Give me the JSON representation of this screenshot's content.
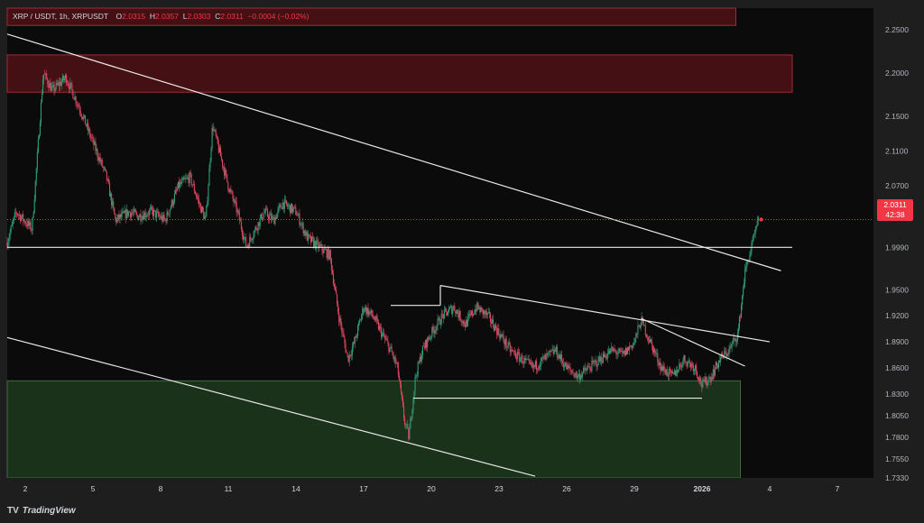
{
  "legend": {
    "symbol": "XRP / USDT, 1h, XRPUSDT",
    "o_label": "O",
    "o_value": "2.0315",
    "h_label": "H",
    "h_value": "2.0357",
    "l_label": "L",
    "l_value": "2.0303",
    "c_label": "C",
    "c_value": "2.0311",
    "change": "−0.0004 (−0.02%)"
  },
  "price_tag": {
    "price": "2.0311",
    "countdown": "42:38"
  },
  "brand": {
    "logo": "TV",
    "name": "TradingView"
  },
  "colors": {
    "background": "#0b0b0b",
    "bull": "#2f9e7a",
    "bear": "#e04660",
    "accent": "#f23645",
    "supply_zone": "#5a1318",
    "demand_zone": "#1d3a1d",
    "lines": "#e8e8e8"
  },
  "chart_data": {
    "type": "candlestick",
    "title": "XRP / USDT, 1h, XRPUSDT",
    "ylim": [
      1.733,
      2.275
    ],
    "xlim_days": [
      1.2,
      39.6
    ],
    "y_ticks": [
      "2.2500",
      "2.2000",
      "2.1500",
      "2.1100",
      "2.0700",
      "1.9990",
      "1.9500",
      "1.9200",
      "1.8900",
      "1.8600",
      "1.8300",
      "1.8050",
      "1.7800",
      "1.7550",
      "1.7330"
    ],
    "y_tick_values": [
      2.25,
      2.2,
      2.15,
      2.11,
      2.07,
      1.999,
      1.95,
      1.92,
      1.89,
      1.86,
      1.83,
      1.805,
      1.78,
      1.755,
      1.733
    ],
    "x_ticks": [
      {
        "day": 2,
        "label": "2"
      },
      {
        "day": 5,
        "label": "5"
      },
      {
        "day": 8,
        "label": "8"
      },
      {
        "day": 11,
        "label": "11"
      },
      {
        "day": 14,
        "label": "14"
      },
      {
        "day": 17,
        "label": "17"
      },
      {
        "day": 20,
        "label": "20"
      },
      {
        "day": 23,
        "label": "23"
      },
      {
        "day": 26,
        "label": "26"
      },
      {
        "day": 29,
        "label": "29"
      },
      {
        "day": 32,
        "label": "2026"
      },
      {
        "day": 35,
        "label": "4"
      },
      {
        "day": 38,
        "label": "7"
      }
    ],
    "last_price": 2.0311,
    "price_path": [
      [
        1.2,
        2.005
      ],
      [
        1.6,
        2.04
      ],
      [
        2.3,
        2.02
      ],
      [
        2.8,
        2.2
      ],
      [
        3.2,
        2.18
      ],
      [
        3.8,
        2.195
      ],
      [
        4.4,
        2.16
      ],
      [
        5.0,
        2.12
      ],
      [
        5.6,
        2.08
      ],
      [
        6.0,
        2.03
      ],
      [
        6.6,
        2.04
      ],
      [
        7.0,
        2.035
      ],
      [
        7.6,
        2.04
      ],
      [
        8.2,
        2.03
      ],
      [
        8.8,
        2.07
      ],
      [
        9.3,
        2.08
      ],
      [
        9.7,
        2.05
      ],
      [
        10.0,
        2.03
      ],
      [
        10.3,
        2.14
      ],
      [
        10.7,
        2.1
      ],
      [
        11.0,
        2.07
      ],
      [
        11.4,
        2.04
      ],
      [
        11.8,
        2.0
      ],
      [
        12.2,
        2.02
      ],
      [
        12.6,
        2.04
      ],
      [
        13.0,
        2.03
      ],
      [
        13.4,
        2.05
      ],
      [
        14.0,
        2.04
      ],
      [
        14.5,
        2.01
      ],
      [
        15.0,
        2.0
      ],
      [
        15.5,
        1.99
      ],
      [
        15.9,
        1.92
      ],
      [
        16.3,
        1.87
      ],
      [
        16.6,
        1.89
      ],
      [
        17.0,
        1.93
      ],
      [
        17.4,
        1.92
      ],
      [
        17.8,
        1.9
      ],
      [
        18.2,
        1.88
      ],
      [
        18.5,
        1.86
      ],
      [
        18.8,
        1.8
      ],
      [
        19.0,
        1.78
      ],
      [
        19.3,
        1.85
      ],
      [
        19.6,
        1.88
      ],
      [
        20.0,
        1.9
      ],
      [
        20.5,
        1.92
      ],
      [
        21.0,
        1.93
      ],
      [
        21.5,
        1.91
      ],
      [
        22.0,
        1.93
      ],
      [
        22.5,
        1.92
      ],
      [
        23.0,
        1.9
      ],
      [
        23.5,
        1.88
      ],
      [
        24.0,
        1.87
      ],
      [
        24.5,
        1.86
      ],
      [
        25.0,
        1.87
      ],
      [
        25.5,
        1.88
      ],
      [
        26.0,
        1.86
      ],
      [
        26.5,
        1.85
      ],
      [
        27.0,
        1.86
      ],
      [
        27.5,
        1.87
      ],
      [
        28.0,
        1.88
      ],
      [
        28.5,
        1.875
      ],
      [
        29.0,
        1.89
      ],
      [
        29.3,
        1.915
      ],
      [
        29.7,
        1.89
      ],
      [
        30.2,
        1.86
      ],
      [
        30.7,
        1.85
      ],
      [
        31.2,
        1.87
      ],
      [
        31.7,
        1.86
      ],
      [
        32.0,
        1.84
      ],
      [
        32.4,
        1.85
      ],
      [
        32.8,
        1.87
      ],
      [
        33.2,
        1.88
      ],
      [
        33.6,
        1.9
      ],
      [
        33.9,
        1.97
      ],
      [
        34.2,
        2.0
      ],
      [
        34.5,
        2.03
      ]
    ],
    "zones": [
      {
        "name": "upper-supply",
        "x0": 1.2,
        "x1": 33.5,
        "y0": 2.255,
        "y1": 2.28
      },
      {
        "name": "mid-supply",
        "x0": 1.2,
        "x1": 36.0,
        "y0": 2.178,
        "y1": 2.221
      },
      {
        "name": "demand",
        "x0": 1.2,
        "x1": 33.7,
        "y0": 1.733,
        "y1": 1.845
      }
    ],
    "lines": [
      {
        "name": "channel-top",
        "x0": 1.2,
        "y0": 2.245,
        "x1": 35.5,
        "y1": 1.972
      },
      {
        "name": "channel-bottom",
        "x0": 1.2,
        "y0": 1.895,
        "x1": 24.6,
        "y1": 1.735
      },
      {
        "name": "horizontal-support",
        "x0": 1.2,
        "y0": 1.999,
        "x1": 36.0,
        "y1": 1.999
      },
      {
        "name": "upper-trendline",
        "x0": 20.4,
        "y0": 1.955,
        "x1": 35.0,
        "y1": 1.89
      },
      {
        "name": "wedge-line",
        "x0": 29.3,
        "y0": 1.917,
        "x1": 33.9,
        "y1": 1.862
      },
      {
        "name": "range-low",
        "x0": 19.2,
        "y0": 1.825,
        "x1": 32.0,
        "y1": 1.825
      },
      {
        "name": "breakout-step-h",
        "x0": 18.2,
        "y0": 1.932,
        "x1": 20.4,
        "y1": 1.932
      },
      {
        "name": "breakout-step-v",
        "x0": 20.4,
        "y0": 1.932,
        "x1": 20.4,
        "y1": 1.955
      }
    ]
  }
}
